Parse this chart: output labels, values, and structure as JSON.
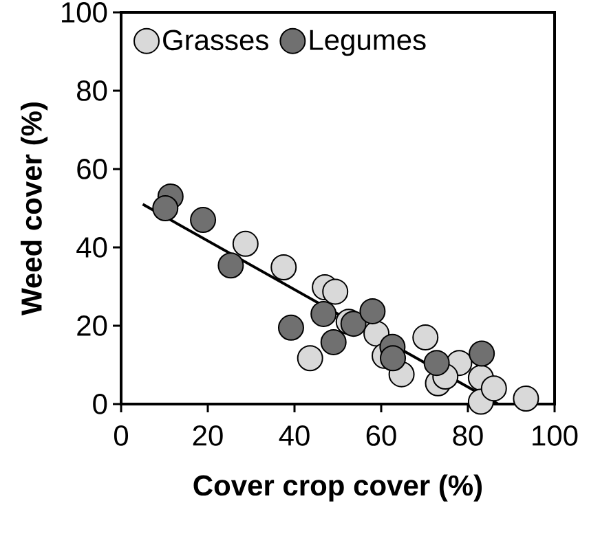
{
  "chart_data": {
    "type": "scatter",
    "xlabel": "Cover crop cover (%)",
    "ylabel": "Weed cover (%)",
    "xlim": [
      0,
      100
    ],
    "ylim": [
      0,
      100
    ],
    "xticks": [
      0,
      20,
      40,
      60,
      80,
      100
    ],
    "yticks": [
      0,
      20,
      40,
      60,
      80,
      100
    ],
    "grid": false,
    "legend": "top left",
    "series": [
      {
        "name": "Grasses",
        "color": "#d9d9d9",
        "marker": "circle",
        "x": [
          28.7,
          37.5,
          47,
          49.4,
          43.6,
          52.5,
          58.9,
          60.8,
          64.7,
          70.2,
          73.1,
          78,
          83,
          83,
          86,
          93.4,
          74.8
        ],
        "values": [
          40.9,
          34.9,
          29.8,
          28.7,
          11.7,
          21,
          18,
          12.3,
          7.6,
          17,
          5.3,
          10.5,
          6.7,
          0.6,
          4,
          1.4,
          7
        ]
      },
      {
        "name": "Legumes",
        "color": "#707070",
        "marker": "circle",
        "x": [
          11.4,
          10.2,
          18.9,
          25.3,
          39.2,
          46.7,
          49,
          53.6,
          58,
          62.6,
          62.7,
          72.8,
          83.2
        ],
        "values": [
          53,
          50,
          47,
          35.4,
          19.5,
          23,
          15.8,
          20.5,
          23.7,
          14.6,
          11.7,
          10.5,
          12.9
        ]
      },
      {
        "type": "line",
        "color": "#000000",
        "marker": "none",
        "x": [
          5,
          87
        ],
        "values": [
          51,
          0
        ]
      }
    ]
  }
}
